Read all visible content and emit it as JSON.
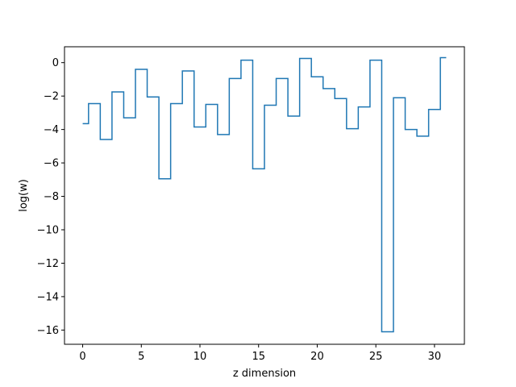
{
  "chart_data": {
    "type": "line",
    "drawstyle": "steps-mid",
    "title": "",
    "xlabel": "z dimension",
    "ylabel": "log(w)",
    "xlim": [
      -1.55,
      32.55
    ],
    "ylim": [
      -16.85,
      0.95
    ],
    "xticks": [
      0,
      5,
      10,
      15,
      20,
      25,
      30
    ],
    "xtick_labels": [
      "0",
      "5",
      "10",
      "15",
      "20",
      "25",
      "30"
    ],
    "yticks": [
      0,
      -2,
      -4,
      -6,
      -8,
      -10,
      -12,
      -14,
      -16
    ],
    "ytick_labels": [
      "0",
      "−2",
      "−4",
      "−6",
      "−8",
      "−10",
      "−12",
      "−14",
      "−16"
    ],
    "grid": false,
    "legend": "none",
    "series": [
      {
        "color": "#1f77b4",
        "x": [
          0,
          1,
          2,
          3,
          4,
          5,
          6,
          7,
          8,
          9,
          10,
          11,
          12,
          13,
          14,
          15,
          16,
          17,
          18,
          19,
          20,
          21,
          22,
          23,
          24,
          25,
          26,
          27,
          28,
          29,
          30,
          31
        ],
        "values": [
          -3.65,
          -2.45,
          -4.6,
          -1.75,
          -3.3,
          -0.4,
          -2.05,
          -6.95,
          -2.45,
          -0.5,
          -3.85,
          -2.5,
          -4.3,
          -0.95,
          0.15,
          -6.35,
          -2.55,
          -0.95,
          -3.2,
          0.25,
          -0.85,
          -1.55,
          -2.15,
          -3.95,
          -2.65,
          0.15,
          -16.1,
          -2.1,
          -4.0,
          -4.4,
          -2.8,
          0.3
        ]
      }
    ]
  }
}
